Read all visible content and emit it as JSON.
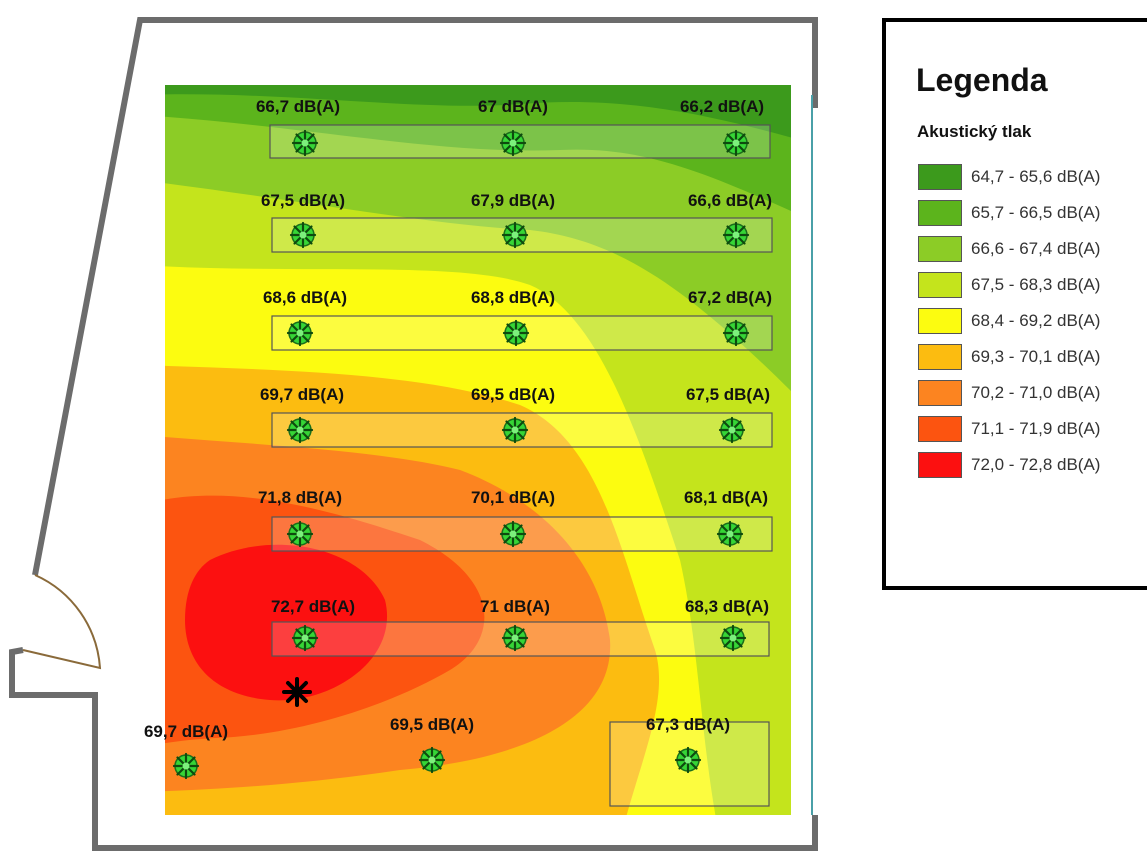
{
  "legend": {
    "title": "Legenda",
    "subtitle": "Akustický tlak",
    "items": [
      {
        "label": "64,7 - 65,6 dB(A)",
        "color": "#3c9a1c"
      },
      {
        "label": "65,7 - 66,5 dB(A)",
        "color": "#5cb41c"
      },
      {
        "label": "66,6 - 67,4 dB(A)",
        "color": "#8ccc26"
      },
      {
        "label": "67,5 - 68,3 dB(A)",
        "color": "#c4e41c"
      },
      {
        "label": "68,4 - 69,2 dB(A)",
        "color": "#fcfc10"
      },
      {
        "label": "69,3 - 70,1 dB(A)",
        "color": "#fcbc10"
      },
      {
        "label": "70,2 - 71,0 dB(A)",
        "color": "#fc8420"
      },
      {
        "label": "71,1 - 71,9 dB(A)",
        "color": "#fc5410"
      },
      {
        "label": "72,0 - 72,8 dB(A)",
        "color": "#fc1010"
      }
    ]
  },
  "measurements": [
    {
      "label": "66,7 dB(A)",
      "value": 66.7,
      "row": 1,
      "col": 1
    },
    {
      "label": "67 dB(A)",
      "value": 67.0,
      "row": 1,
      "col": 2
    },
    {
      "label": "66,2 dB(A)",
      "value": 66.2,
      "row": 1,
      "col": 3
    },
    {
      "label": "67,5 dB(A)",
      "value": 67.5,
      "row": 2,
      "col": 1
    },
    {
      "label": "67,9 dB(A)",
      "value": 67.9,
      "row": 2,
      "col": 2
    },
    {
      "label": "66,6 dB(A)",
      "value": 66.6,
      "row": 2,
      "col": 3
    },
    {
      "label": "68,6 dB(A)",
      "value": 68.6,
      "row": 3,
      "col": 1
    },
    {
      "label": "68,8 dB(A)",
      "value": 68.8,
      "row": 3,
      "col": 2
    },
    {
      "label": "67,2 dB(A)",
      "value": 67.2,
      "row": 3,
      "col": 3
    },
    {
      "label": "69,7 dB(A)",
      "value": 69.7,
      "row": 4,
      "col": 1
    },
    {
      "label": "69,5 dB(A)",
      "value": 69.5,
      "row": 4,
      "col": 2
    },
    {
      "label": "67,5 dB(A)",
      "value": 67.5,
      "row": 4,
      "col": 3
    },
    {
      "label": "71,8 dB(A)",
      "value": 71.8,
      "row": 5,
      "col": 1
    },
    {
      "label": "70,1 dB(A)",
      "value": 70.1,
      "row": 5,
      "col": 2
    },
    {
      "label": "68,1 dB(A)",
      "value": 68.1,
      "row": 5,
      "col": 3
    },
    {
      "label": "72,7 dB(A)",
      "value": 72.7,
      "row": 6,
      "col": 1
    },
    {
      "label": "71 dB(A)",
      "value": 71.0,
      "row": 6,
      "col": 2
    },
    {
      "label": "68,3 dB(A)",
      "value": 68.3,
      "row": 6,
      "col": 3
    },
    {
      "label": "69,7 dB(A)",
      "value": 69.7,
      "row": 7,
      "col": 1
    },
    {
      "label": "69,5 dB(A)",
      "value": 69.5,
      "row": 7,
      "col": 2
    },
    {
      "label": "67,3 dB(A)",
      "value": 67.3,
      "row": 7,
      "col": 3
    }
  ]
}
